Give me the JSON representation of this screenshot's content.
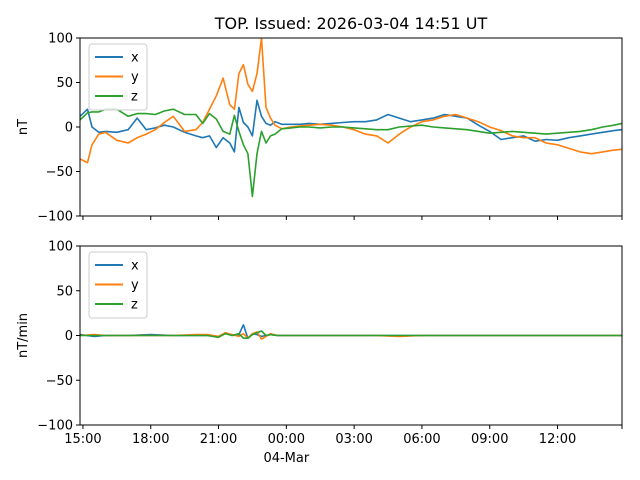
{
  "title": "TOP. Issued: 2026-03-04 14:51 UT",
  "colors": {
    "x": "#1f77b4",
    "y": "#ff7f0e",
    "z": "#2ca02c"
  },
  "chart_data": [
    {
      "type": "line",
      "panel": "top",
      "title": "TOP. Issued: 2026-03-04 14:51 UT",
      "xlabel": "",
      "ylabel": "nT",
      "ylim": [
        -100,
        100
      ],
      "yticks": [
        "100",
        "50",
        "0",
        "−50",
        "−100"
      ],
      "xticks": [
        "15:00",
        "18:00",
        "21:00",
        "00:00",
        "03:00",
        "06:00",
        "09:00",
        "12:00"
      ],
      "xtick_sublabel": "04-Mar",
      "x_hours_from_1500": [
        -0.13,
        0.2,
        0.4,
        0.7,
        1.0,
        1.5,
        2.0,
        2.4,
        2.8,
        3.2,
        3.6,
        4.0,
        4.5,
        5.0,
        5.3,
        5.6,
        5.9,
        6.2,
        6.5,
        6.7,
        6.9,
        7.1,
        7.3,
        7.5,
        7.7,
        7.9,
        8.1,
        8.3,
        8.5,
        8.8,
        9.2,
        9.6,
        10.0,
        10.5,
        11.0,
        11.5,
        12.0,
        12.5,
        13.0,
        13.5,
        14.0,
        14.5,
        15.0,
        15.5,
        16.0,
        16.5,
        17.0,
        17.5,
        18.0,
        18.5,
        19.0,
        19.5,
        20.0,
        20.5,
        21.0,
        21.5,
        22.0,
        22.5,
        23.0,
        23.5,
        23.85
      ],
      "legend": [
        "x",
        "y",
        "z"
      ],
      "legend_position": "upper left",
      "grid": false,
      "series": [
        {
          "name": "x",
          "values": [
            12,
            20,
            0,
            -6,
            -5,
            -6,
            -3,
            10,
            -3,
            -1,
            2,
            0,
            -6,
            -10,
            -12,
            -10,
            -23,
            -12,
            -18,
            -28,
            22,
            5,
            0,
            -10,
            30,
            12,
            4,
            2,
            6,
            3,
            3,
            3,
            4,
            3,
            4,
            5,
            6,
            6,
            8,
            14,
            10,
            6,
            8,
            10,
            14,
            12,
            10,
            2,
            -5,
            -14,
            -12,
            -10,
            -16,
            -14,
            -15,
            -12,
            -10,
            -8,
            -6,
            -4,
            -3
          ]
        },
        {
          "name": "y",
          "values": [
            -36,
            -40,
            -20,
            -8,
            -6,
            -15,
            -18,
            -12,
            -8,
            -3,
            5,
            12,
            -5,
            -3,
            5,
            20,
            35,
            55,
            25,
            20,
            60,
            70,
            48,
            40,
            60,
            100,
            22,
            10,
            2,
            -2,
            0,
            1,
            2,
            3,
            2,
            0,
            -3,
            -8,
            -10,
            -18,
            -8,
            0,
            6,
            8,
            12,
            14,
            10,
            6,
            0,
            -4,
            -10,
            -12,
            -12,
            -18,
            -20,
            -24,
            -28,
            -30,
            -28,
            -26,
            -25
          ]
        },
        {
          "name": "z",
          "values": [
            8,
            16,
            17,
            17,
            20,
            20,
            12,
            15,
            15,
            14,
            18,
            20,
            14,
            14,
            4,
            15,
            9,
            -5,
            -8,
            13,
            -5,
            -20,
            -30,
            -78,
            -30,
            -5,
            -18,
            -10,
            -8,
            -2,
            -1,
            0,
            0,
            -1,
            0,
            0,
            -1,
            -2,
            -3,
            -3,
            0,
            1,
            2,
            0,
            -1,
            -2,
            -3,
            -5,
            -7,
            -6,
            -5,
            -6,
            -7,
            -8,
            -7,
            -6,
            -5,
            -3,
            0,
            2,
            4
          ]
        }
      ]
    },
    {
      "type": "line",
      "panel": "bottom",
      "xlabel": "",
      "ylabel": "nT/min",
      "ylim": [
        -100,
        100
      ],
      "yticks": [
        "100",
        "50",
        "0",
        "−50",
        "−100"
      ],
      "xticks": [
        "15:00",
        "18:00",
        "21:00",
        "00:00",
        "03:00",
        "06:00",
        "09:00",
        "12:00"
      ],
      "xtick_sublabel": "04-Mar",
      "x_hours_from_1500": [
        -0.13,
        0.5,
        1.0,
        2.0,
        3.0,
        4.0,
        5.0,
        5.5,
        6.0,
        6.3,
        6.6,
        6.9,
        7.1,
        7.3,
        7.5,
        7.7,
        7.9,
        8.1,
        8.3,
        8.6,
        9.0,
        10.0,
        11.0,
        12.0,
        13.0,
        14.0,
        15.0,
        16.0,
        17.0,
        18.0,
        19.0,
        20.0,
        21.0,
        22.0,
        23.0,
        23.85
      ],
      "legend": [
        "x",
        "y",
        "z"
      ],
      "legend_position": "upper left",
      "grid": false,
      "series": [
        {
          "name": "x",
          "values": [
            1,
            -1,
            0,
            0,
            1,
            0,
            0,
            0,
            -1,
            3,
            0,
            1,
            12,
            -3,
            2,
            1,
            -1,
            0,
            1,
            0,
            0,
            0,
            0,
            0,
            0,
            0,
            0,
            0,
            0,
            0,
            0,
            0,
            0,
            0,
            0,
            0
          ]
        },
        {
          "name": "y",
          "values": [
            0,
            1,
            0,
            0,
            0,
            0,
            1,
            1,
            -1,
            3,
            1,
            -1,
            2,
            -3,
            2,
            4,
            -4,
            -1,
            2,
            0,
            0,
            0,
            0,
            0,
            0,
            -1,
            0,
            0,
            0,
            0,
            0,
            0,
            0,
            0,
            0,
            0
          ]
        },
        {
          "name": "z",
          "values": [
            0,
            0,
            0,
            0,
            0,
            0,
            0,
            0,
            -2,
            2,
            0,
            2,
            -3,
            -3,
            1,
            3,
            5,
            0,
            1,
            0,
            0,
            0,
            0,
            0,
            0,
            0,
            0,
            0,
            0,
            0,
            0,
            0,
            0,
            0,
            0,
            0
          ]
        }
      ]
    }
  ]
}
